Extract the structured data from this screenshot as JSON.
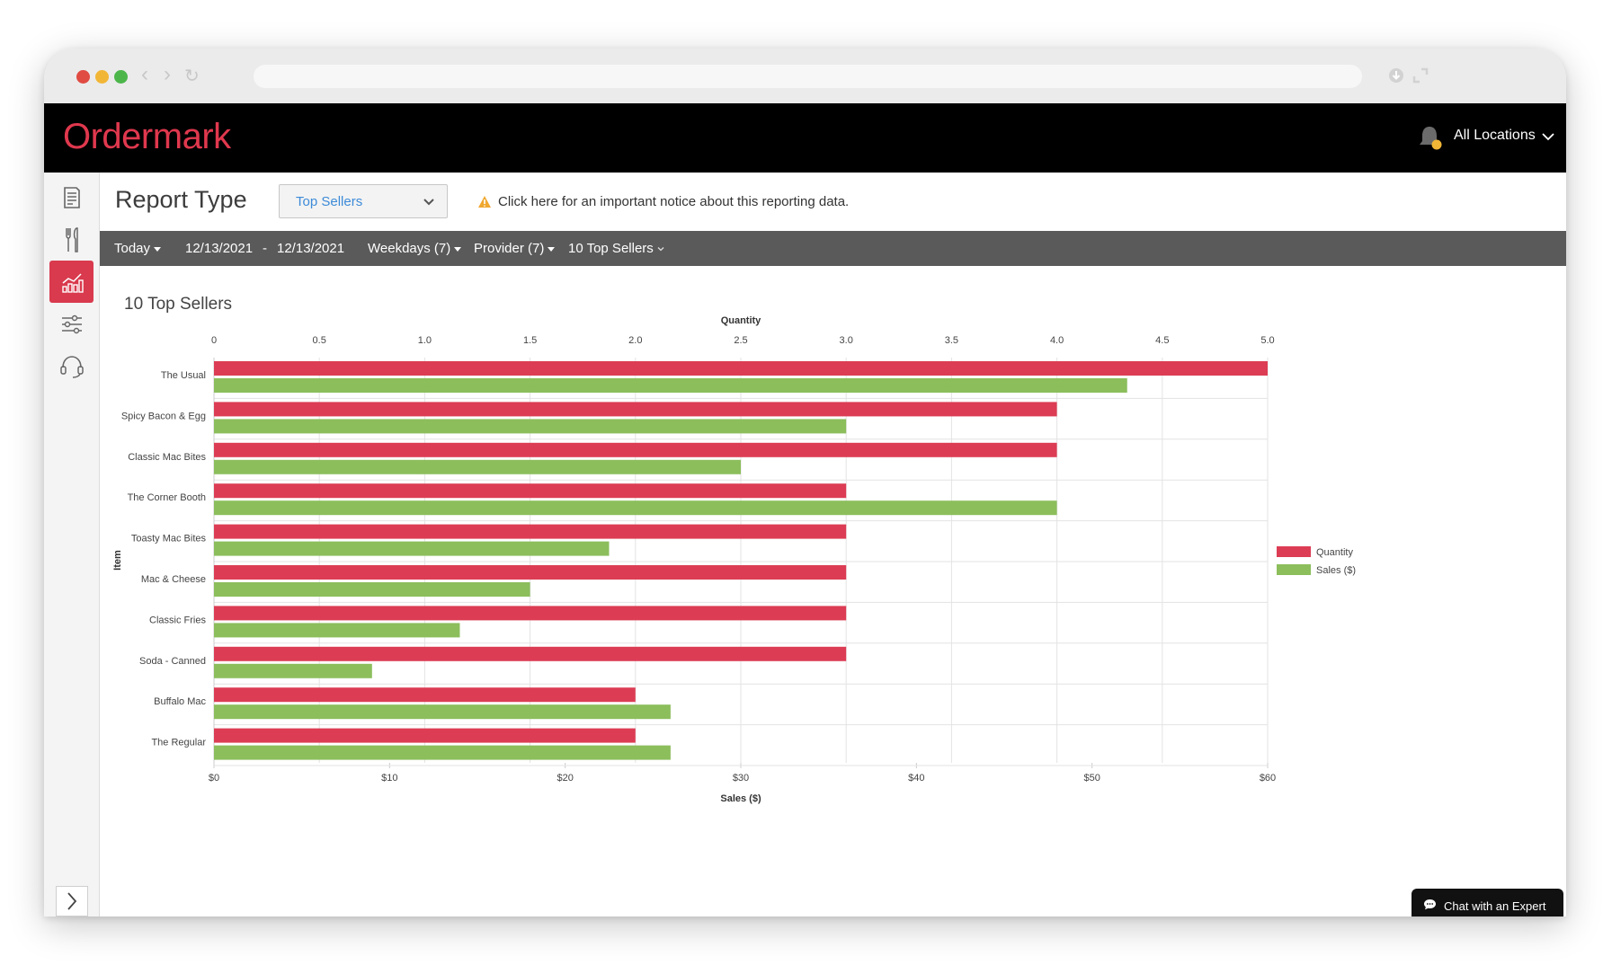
{
  "app": {
    "logo": "Ordermark",
    "location_selector": "All Locations",
    "brand_color": "#e0384e",
    "notification_badge": ""
  },
  "browser": {
    "close_color": "#e04b42",
    "minimize_color": "#f2b636",
    "maximize_color": "#4cb64a"
  },
  "sidebar": {
    "items": [
      {
        "icon": "receipt-icon",
        "label": "Orders"
      },
      {
        "icon": "utensils-icon",
        "label": "Menu"
      },
      {
        "icon": "chart-icon",
        "label": "Reports",
        "active": true
      },
      {
        "icon": "sliders-icon",
        "label": "Settings"
      },
      {
        "icon": "headset-icon",
        "label": "Support"
      }
    ],
    "expand_icon": "chevron-right-icon"
  },
  "header": {
    "report_type_label": "Report Type",
    "report_type_value": "Top Sellers",
    "notice": "Click here for an important notice about this reporting data."
  },
  "filters": {
    "range": "Today",
    "start_date": "12/13/2021",
    "date_separator": "-",
    "end_date": "12/13/2021",
    "days": "Weekdays (7)",
    "provider": "Provider (7)",
    "top_n": "10 Top Sellers"
  },
  "content": {
    "title": "10 Top Sellers"
  },
  "chart_data": {
    "type": "bar",
    "orientation": "horizontal",
    "title": "",
    "ylabel": "Item",
    "x_top_label": "Quantity",
    "x_bottom_label": "Sales ($)",
    "x_top_range": [
      0,
      5.0
    ],
    "x_top_ticks": [
      "0",
      "0.5",
      "1.0",
      "1.5",
      "2.0",
      "2.5",
      "3.0",
      "3.5",
      "4.0",
      "4.5",
      "5.0"
    ],
    "x_bottom_range": [
      0,
      60
    ],
    "x_bottom_ticks": [
      "$0",
      "$10",
      "$20",
      "$30",
      "$40",
      "$50",
      "$60"
    ],
    "grid": true,
    "legend_position": "right",
    "categories": [
      "The Usual",
      "Spicy Bacon & Egg",
      "Classic Mac Bites",
      "The Corner Booth",
      "Toasty Mac Bites",
      "Mac & Cheese",
      "Classic Fries",
      "Soda - Canned",
      "Buffalo Mac",
      "The Regular"
    ],
    "series": [
      {
        "name": "Quantity",
        "axis": "top",
        "color": "#dc3d54",
        "values": [
          5,
          4,
          4,
          3,
          3,
          3,
          3,
          3,
          2,
          2
        ]
      },
      {
        "name": "Sales ($)",
        "axis": "bottom",
        "color": "#8cbe5c",
        "values": [
          52,
          36,
          30,
          48,
          22.5,
          18,
          14,
          9,
          26,
          26
        ]
      }
    ]
  },
  "chat": {
    "label": "Chat with an Expert"
  }
}
